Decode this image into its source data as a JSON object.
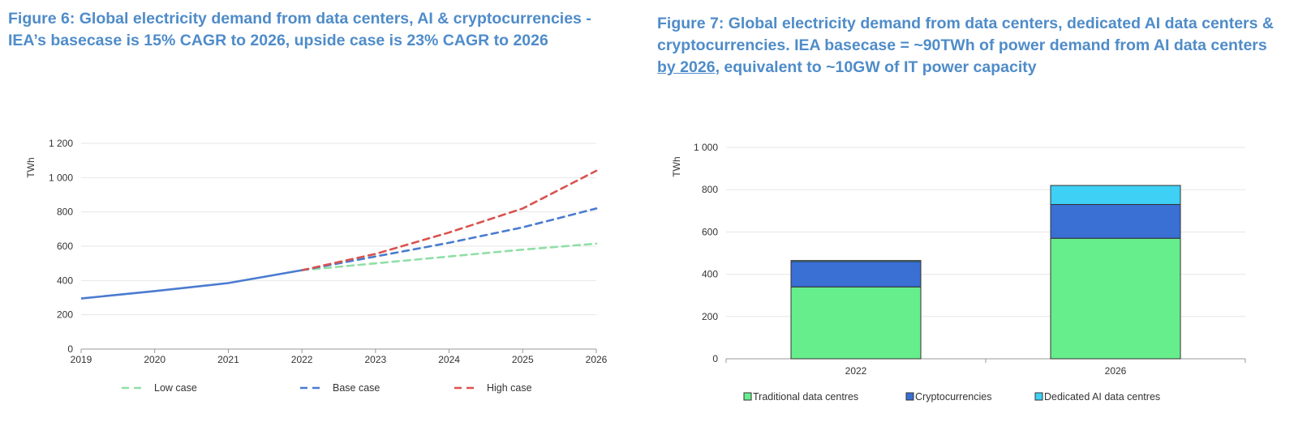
{
  "chart_data": [
    {
      "type": "line",
      "title": "Figure 6: Global electricity demand from data centers, AI & cryptocurrencies - IEA’s basecase is 15% CAGR to 2026, upside case is 23% CAGR to 2026",
      "ylabel": "TWh",
      "ylim": [
        0,
        1200
      ],
      "yticks": [
        0,
        200,
        400,
        600,
        800,
        1000,
        1200
      ],
      "ytick_labels": [
        "0",
        "200",
        "400",
        "600",
        "800",
        "1 000",
        "1 200"
      ],
      "x": [
        2019,
        2020,
        2021,
        2022,
        2023,
        2024,
        2025,
        2026
      ],
      "historical": {
        "x": [
          2019,
          2020,
          2021,
          2022
        ],
        "values": [
          295,
          338,
          385,
          460
        ],
        "color": "#4a7bd0"
      },
      "series": [
        {
          "name": "Low case",
          "x": [
            2022,
            2023,
            2024,
            2025,
            2026
          ],
          "values": [
            460,
            500,
            540,
            580,
            615
          ],
          "color": "#90dfa6"
        },
        {
          "name": "Base case",
          "x": [
            2022,
            2023,
            2024,
            2025,
            2026
          ],
          "values": [
            460,
            540,
            620,
            710,
            820
          ],
          "color": "#4a7bd0"
        },
        {
          "name": "High case",
          "x": [
            2022,
            2023,
            2024,
            2025,
            2026
          ],
          "values": [
            460,
            555,
            680,
            820,
            1040
          ],
          "color": "#d9534f"
        }
      ],
      "grid": true,
      "legend_position": "bottom"
    },
    {
      "type": "bar",
      "stacked": true,
      "title_parts": [
        "Figure 7: Global electricity demand from data centers, dedicated AI data centers & cryptocurrencies. IEA basecase = ~90TWh of power demand from AI data centers ",
        "by 2026",
        ", equivalent to ~10GW of IT power capacity"
      ],
      "ylabel": "TWh",
      "ylim": [
        0,
        1000
      ],
      "yticks": [
        0,
        200,
        400,
        600,
        800,
        1000
      ],
      "ytick_labels": [
        "0",
        "200",
        "400",
        "600",
        "800",
        "1 000"
      ],
      "categories": [
        "2022",
        "2026"
      ],
      "series": [
        {
          "name": "Traditional data centres",
          "values": [
            340,
            570
          ],
          "color": "#66ee8c"
        },
        {
          "name": "Cryptocurrencies",
          "values": [
            120,
            160
          ],
          "color": "#3a6fd4"
        },
        {
          "name": "Dedicated AI data centres",
          "values": [
            5,
            90
          ],
          "color": "#3fd0f5"
        }
      ],
      "grid": true,
      "legend_position": "bottom"
    }
  ]
}
